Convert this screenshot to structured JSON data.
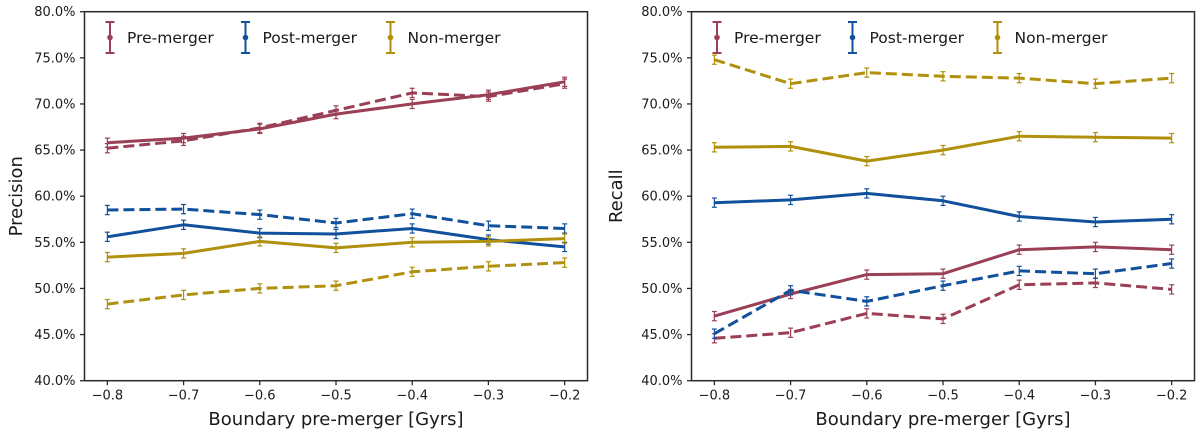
{
  "figure": {
    "background": "#ffffff",
    "text_color": "#1a1a1a",
    "spine_color": "#2a2a2a",
    "point_error_pct": 0.5,
    "x_tick_labels": [
      "−0.8",
      "−0.7",
      "−0.6",
      "−0.5",
      "−0.4",
      "−0.3",
      "−0.2"
    ],
    "y_tick_labels": [
      "40.0%",
      "45.0%",
      "50.0%",
      "55.0%",
      "60.0%",
      "65.0%",
      "70.0%",
      "75.0%",
      "80.0%"
    ],
    "legend": [
      {
        "label": "Pre-merger",
        "color": "#9a3f55"
      },
      {
        "label": "Post-merger",
        "color": "#11509c"
      },
      {
        "label": "Non-merger",
        "color": "#b0900d"
      }
    ]
  },
  "chart_data": [
    {
      "type": "line",
      "title": "",
      "ylabel": "Precision",
      "xlabel": "Boundary pre-merger [Gyrs]",
      "x": [
        -0.8,
        -0.7,
        -0.6,
        -0.5,
        -0.4,
        -0.3,
        -0.2
      ],
      "xlim": [
        -0.83,
        -0.17
      ],
      "ylim": [
        40,
        80
      ],
      "y_tick_step": 5,
      "grid": false,
      "legend_position": "upper-left-horizontal",
      "series": [
        {
          "name": "Pre-merger",
          "color": "#9a3f55",
          "solid": [
            65.8,
            66.3,
            67.3,
            68.9,
            70.0,
            71.0,
            72.4
          ],
          "dashed": [
            65.2,
            66.0,
            67.4,
            69.3,
            71.2,
            70.8,
            72.2
          ]
        },
        {
          "name": "Post-merger",
          "color": "#11509c",
          "solid": [
            55.6,
            56.9,
            56.0,
            55.9,
            56.5,
            55.3,
            54.5
          ],
          "dashed": [
            58.5,
            58.6,
            58.0,
            57.1,
            58.1,
            56.8,
            56.5
          ]
        },
        {
          "name": "Non-merger",
          "color": "#b0900d",
          "solid": [
            53.4,
            53.8,
            55.1,
            54.4,
            55.0,
            55.1,
            55.4
          ],
          "dashed": [
            48.3,
            49.3,
            50.0,
            50.3,
            51.8,
            52.4,
            52.8
          ]
        }
      ]
    },
    {
      "type": "line",
      "title": "",
      "ylabel": "Recall",
      "xlabel": "Boundary pre-merger [Gyrs]",
      "x": [
        -0.8,
        -0.7,
        -0.6,
        -0.5,
        -0.4,
        -0.3,
        -0.2
      ],
      "xlim": [
        -0.83,
        -0.17
      ],
      "ylim": [
        40,
        80
      ],
      "y_tick_step": 5,
      "grid": false,
      "legend_position": "upper-left-horizontal",
      "series": [
        {
          "name": "Pre-merger",
          "color": "#9a3f55",
          "solid": [
            47.0,
            49.4,
            51.5,
            51.6,
            54.2,
            54.5,
            54.2
          ],
          "dashed": [
            44.6,
            45.2,
            47.3,
            46.7,
            50.4,
            50.6,
            49.9
          ]
        },
        {
          "name": "Post-merger",
          "color": "#11509c",
          "solid": [
            59.3,
            59.6,
            60.3,
            59.5,
            57.8,
            57.2,
            57.5
          ],
          "dashed": [
            45.1,
            49.8,
            48.6,
            50.3,
            51.9,
            51.6,
            52.7
          ]
        },
        {
          "name": "Non-merger",
          "color": "#b0900d",
          "solid": [
            65.3,
            65.4,
            63.8,
            65.0,
            66.5,
            66.4,
            66.3
          ],
          "dashed": [
            74.8,
            72.2,
            73.4,
            73.0,
            72.8,
            72.2,
            72.8
          ]
        }
      ]
    }
  ]
}
